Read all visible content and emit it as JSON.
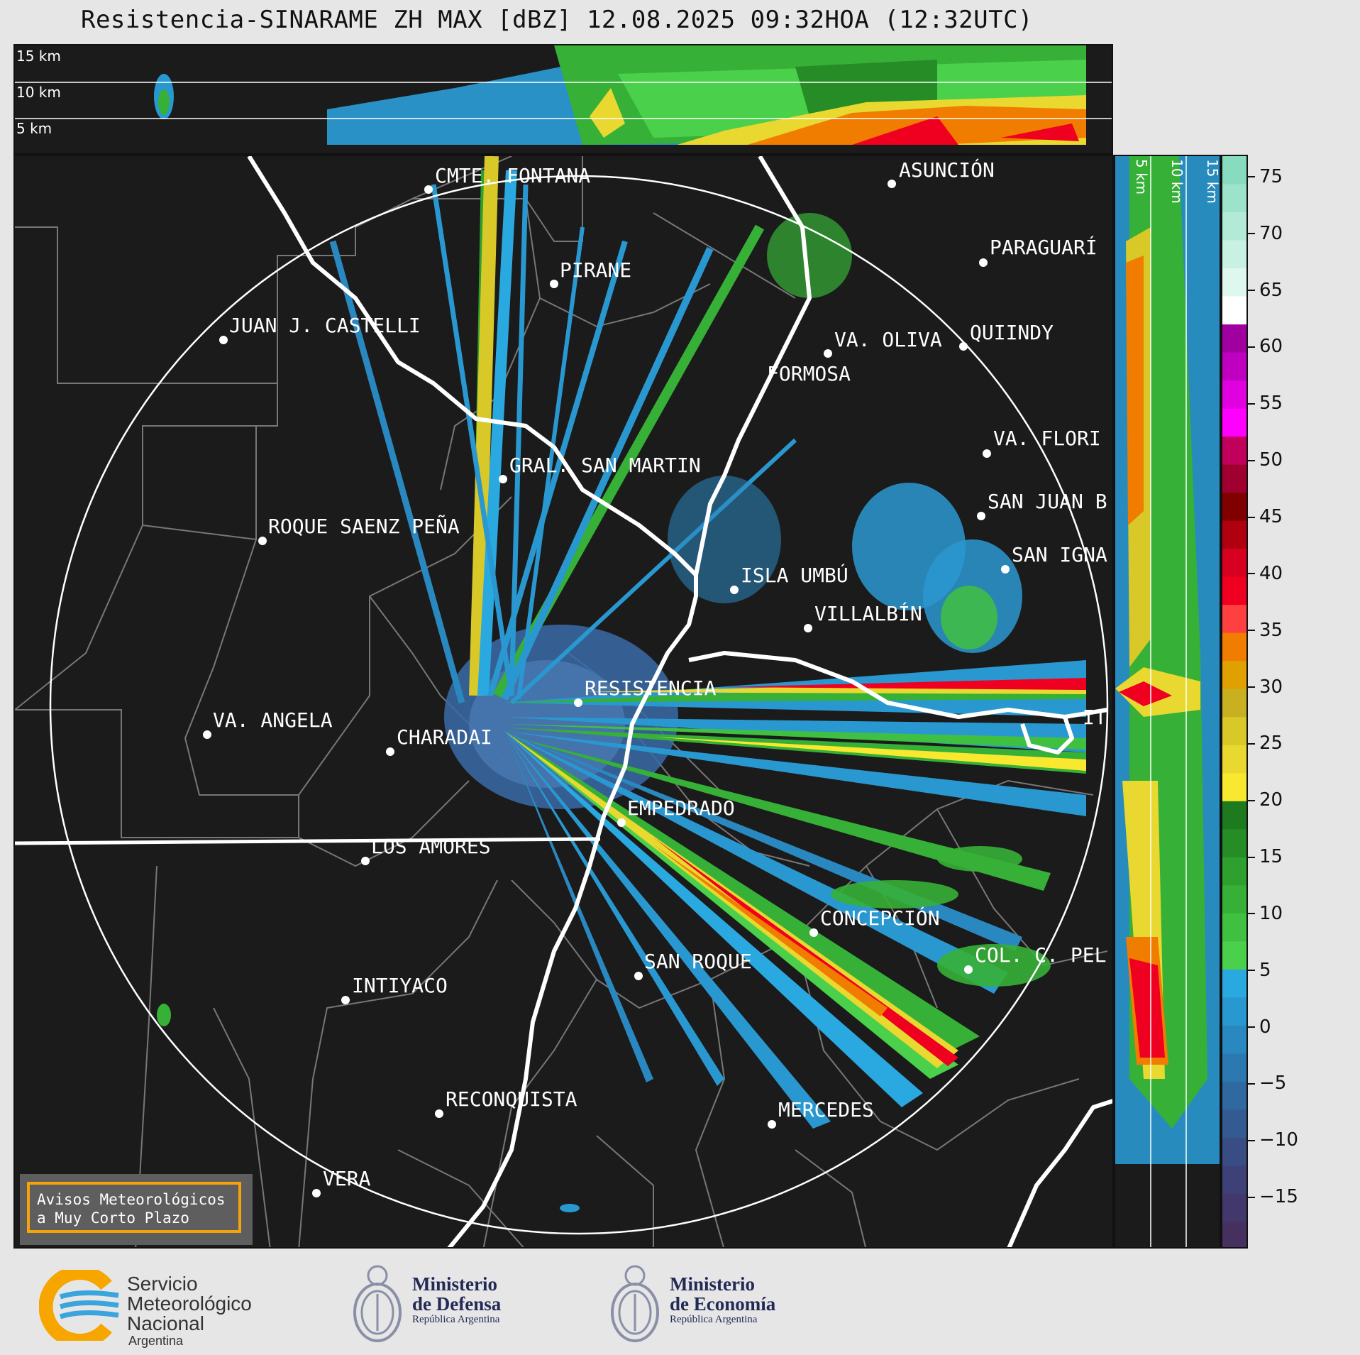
{
  "title": "Resistencia-SINARAME ZH MAX [dBZ] 12.08.2025 09:32HOA (12:32UTC)",
  "altitude_labels_top": [
    "15 km",
    "10 km",
    "5 km"
  ],
  "altitude_labels_side": [
    "5 km",
    "10 km",
    "15 km"
  ],
  "cities": [
    {
      "name": "CMTE. FONTANA"
    },
    {
      "name": "ASUNCIÓN"
    },
    {
      "name": "PARAGUARÍ"
    },
    {
      "name": "PIRANE"
    },
    {
      "name": "JUAN J. CASTELLI"
    },
    {
      "name": "VA. OLIVA"
    },
    {
      "name": "QUIINDY"
    },
    {
      "name": "FORMOSA"
    },
    {
      "name": "VA. FLORI"
    },
    {
      "name": "GRAL. SAN MARTIN"
    },
    {
      "name": "SAN JUAN B"
    },
    {
      "name": "ROQUE SAENZ PEÑA"
    },
    {
      "name": "SAN IGNA"
    },
    {
      "name": "ISLA UMBÚ"
    },
    {
      "name": "VILLALBÍN"
    },
    {
      "name": "RESISTENCIA"
    },
    {
      "name": "VA. ANGELA"
    },
    {
      "name": "CHARADAI"
    },
    {
      "name": "IT"
    },
    {
      "name": "EMPEDRADO"
    },
    {
      "name": "LOS AMORES"
    },
    {
      "name": "CONCEPCIÓN"
    },
    {
      "name": "SAN ROQUE"
    },
    {
      "name": "COL. C. PEL"
    },
    {
      "name": "INTIYACO"
    },
    {
      "name": "RECONQUISTA"
    },
    {
      "name": "MERCEDES"
    },
    {
      "name": "VERA"
    }
  ],
  "colorbar": {
    "ticks": [
      "75",
      "70",
      "65",
      "60",
      "55",
      "50",
      "45",
      "40",
      "35",
      "30",
      "25",
      "20",
      "15",
      "10",
      "5",
      "0",
      "−5",
      "−10",
      "−15"
    ],
    "colors": [
      "#87dcbf",
      "#9de3cb",
      "#b3ead7",
      "#c9f1e3",
      "#dff8ef",
      "#ffffff",
      "#a000a0",
      "#c000c0",
      "#e000e0",
      "#ff00ff",
      "#c0005a",
      "#a00030",
      "#800000",
      "#b00010",
      "#d80020",
      "#f00020",
      "#ff4040",
      "#f07c00",
      "#e0a000",
      "#c8b020",
      "#d8c828",
      "#e8d830",
      "#f8e830",
      "#1e7a1e",
      "#268c26",
      "#2ea02e",
      "#36b036",
      "#40c040",
      "#4ad04a",
      "#2aa8e0",
      "#2898d0",
      "#2a88c0",
      "#2c78b0",
      "#3068a0",
      "#345a92",
      "#3a4c84",
      "#3e4078",
      "#42386c",
      "#463060"
    ]
  },
  "notice": {
    "line1": "Avisos Meteorológicos",
    "line2": "a Muy Corto Plazo"
  },
  "footer": {
    "smn": {
      "line1": "Servicio",
      "line2": "Meteorológico",
      "line3": "Nacional",
      "line4": "Argentina"
    },
    "defensa": {
      "line1": "Ministerio",
      "line2": "de Defensa",
      "line3": "República Argentina"
    },
    "economia": {
      "line1": "Ministerio",
      "line2": "de Economía",
      "line3": "República Argentina"
    }
  }
}
